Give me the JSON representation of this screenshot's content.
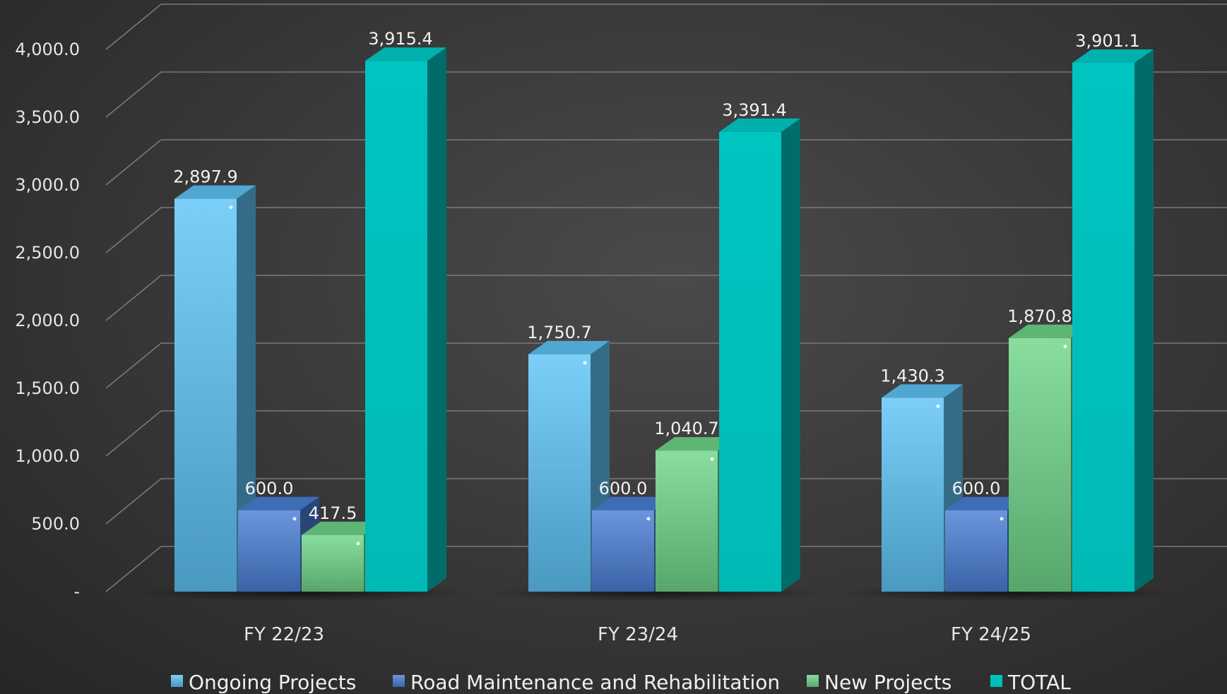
{
  "chart_data": {
    "type": "bar",
    "title": "",
    "xlabel": "",
    "ylabel": "",
    "categories": [
      "FY 22/23",
      "FY 23/24",
      "FY 24/25"
    ],
    "series": [
      {
        "name": "Ongoing Projects",
        "values": [
          2897.9,
          1750.7,
          1430.3
        ],
        "labels": [
          "2,897.9",
          "1,750.7",
          "1,430.3"
        ],
        "color": "#5ec4f7"
      },
      {
        "name": "Road Maintenance and Rehabilitation",
        "values": [
          600.0,
          600.0,
          600.0
        ],
        "labels": [
          "600.0",
          "600.0",
          "600.0"
        ],
        "color": "#4a7fd6"
      },
      {
        "name": "New Projects",
        "values": [
          417.5,
          1040.7,
          1870.8
        ],
        "labels": [
          "417.5",
          "1,040.7",
          "1,870.8"
        ],
        "color": "#6fd68a"
      },
      {
        "name": "TOTAL",
        "values": [
          3915.4,
          3391.4,
          3901.1
        ],
        "labels": [
          "3,915.4",
          "3,391.4",
          "3,901.1"
        ],
        "color": "#00c4c0"
      }
    ],
    "ylim": [
      0,
      4000
    ],
    "yticks": [
      0,
      500,
      1000,
      1500,
      2000,
      2500,
      3000,
      3500,
      4000
    ],
    "ytick_labels": [
      "-",
      "500.0",
      "1,000.0",
      "1,500.0",
      "2,000.0",
      "2,500.0",
      "3,000.0",
      "3,500.0",
      "4,000.0"
    ],
    "grid": true,
    "legend_position": "bottom",
    "style": "3d-column"
  }
}
